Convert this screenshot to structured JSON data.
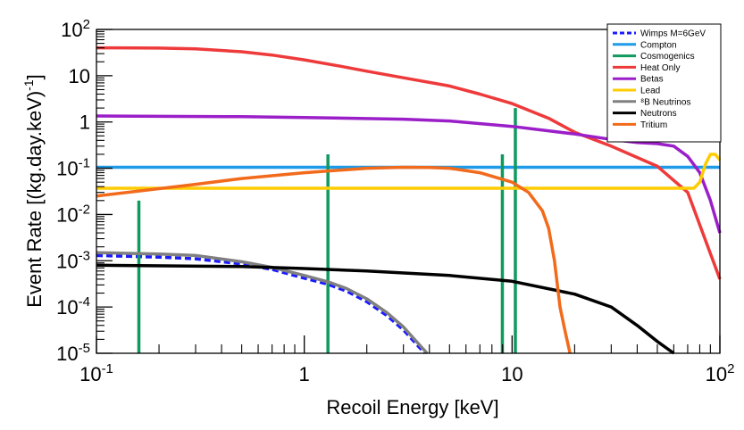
{
  "chart_data": {
    "type": "line",
    "title": "",
    "xlabel": "Recoil Energy [keV]",
    "ylabel": "Event Rate [(kg.day.keV)",
    "ylabel_sup": "-1",
    "ylabel_close": "]",
    "xscale": "log",
    "yscale": "log",
    "xlim": [
      0.1,
      100
    ],
    "ylim": [
      1e-05,
      100
    ],
    "grid": false,
    "legend_position": "top-right",
    "x_ticks": [
      {
        "value": 0.1,
        "base": "10",
        "exp": "-1"
      },
      {
        "value": 1,
        "base": "1",
        "exp": ""
      },
      {
        "value": 10,
        "base": "10",
        "exp": ""
      },
      {
        "value": 100,
        "base": "10",
        "exp": "2"
      }
    ],
    "y_ticks": [
      {
        "value": 100,
        "base": "10",
        "exp": "2"
      },
      {
        "value": 10,
        "base": "10",
        "exp": ""
      },
      {
        "value": 1,
        "base": "1",
        "exp": ""
      },
      {
        "value": 0.1,
        "base": "10",
        "exp": "-1"
      },
      {
        "value": 0.01,
        "base": "10",
        "exp": "-2"
      },
      {
        "value": 0.001,
        "base": "10",
        "exp": "-3"
      },
      {
        "value": 0.0001,
        "base": "10",
        "exp": "-4"
      },
      {
        "value": 1e-05,
        "base": "10",
        "exp": "-5"
      }
    ],
    "series": [
      {
        "name": "Wimps M=6GeV",
        "color": "#1a1aff",
        "dashed": true,
        "width": 3.5,
        "points": [
          [
            0.1,
            0.0013
          ],
          [
            0.2,
            0.0012
          ],
          [
            0.3,
            0.0011
          ],
          [
            0.5,
            0.00085
          ],
          [
            0.7,
            0.00065
          ],
          [
            1.0,
            0.00042
          ],
          [
            1.3,
            0.00031
          ],
          [
            1.6,
            0.00022
          ],
          [
            2.0,
            0.00013
          ],
          [
            2.5,
            6.5e-05
          ],
          [
            3.0,
            3.2e-05
          ],
          [
            3.5,
            1.5e-05
          ],
          [
            3.8,
            1e-05
          ]
        ]
      },
      {
        "name": "Compton",
        "color": "#1e9be8",
        "dashed": false,
        "width": 3.5,
        "points": [
          [
            0.1,
            0.105
          ],
          [
            100,
            0.105
          ]
        ]
      },
      {
        "name": "Cosmogenics",
        "color": "#0f9a5e",
        "dashed": false,
        "width": 3.5,
        "lines": [
          {
            "x": 0.16,
            "top": 0.02
          },
          {
            "x": 1.3,
            "top": 0.2
          },
          {
            "x": 8.98,
            "top": 0.2
          },
          {
            "x": 10.37,
            "top": 2.0
          }
        ]
      },
      {
        "name": "Heat Only",
        "color": "#ee3a3a",
        "dashed": false,
        "width": 3.5,
        "points": [
          [
            0.1,
            40
          ],
          [
            0.2,
            39.5
          ],
          [
            0.3,
            38
          ],
          [
            0.5,
            33
          ],
          [
            0.7,
            28
          ],
          [
            1.0,
            22
          ],
          [
            1.5,
            16
          ],
          [
            2.0,
            12.5
          ],
          [
            3.0,
            9
          ],
          [
            5.0,
            6
          ],
          [
            7.0,
            4
          ],
          [
            10.0,
            2.5
          ],
          [
            15.0,
            1.2
          ],
          [
            20.0,
            0.6
          ],
          [
            30.0,
            0.3
          ],
          [
            50.0,
            0.11
          ],
          [
            70.0,
            0.03
          ],
          [
            100.0,
            0.0004
          ]
        ]
      },
      {
        "name": "Betas",
        "color": "#9b1fc8",
        "dashed": false,
        "width": 3.5,
        "points": [
          [
            0.1,
            1.35
          ],
          [
            0.5,
            1.3
          ],
          [
            1.0,
            1.25
          ],
          [
            3.0,
            1.15
          ],
          [
            5.0,
            1.05
          ],
          [
            10.0,
            0.8
          ],
          [
            20.0,
            0.55
          ],
          [
            30.0,
            0.42
          ],
          [
            40.0,
            0.36
          ],
          [
            50.0,
            0.34
          ],
          [
            60.0,
            0.3
          ],
          [
            70.0,
            0.18
          ],
          [
            80.0,
            0.08
          ],
          [
            90.0,
            0.02
          ],
          [
            100.0,
            0.004
          ]
        ]
      },
      {
        "name": "Lead",
        "color": "#ffcc00",
        "dashed": false,
        "width": 3.5,
        "points": [
          [
            0.1,
            0.037
          ],
          [
            75.0,
            0.037
          ],
          [
            80.0,
            0.05
          ],
          [
            85.0,
            0.12
          ],
          [
            90.0,
            0.2
          ],
          [
            95.0,
            0.2
          ],
          [
            100.0,
            0.15
          ]
        ]
      },
      {
        "name": "⁸B Neutrinos",
        "color": "#808080",
        "dashed": false,
        "width": 3.5,
        "points": [
          [
            0.1,
            0.0015
          ],
          [
            0.2,
            0.0014
          ],
          [
            0.3,
            0.0013
          ],
          [
            0.5,
            0.00095
          ],
          [
            0.7,
            0.00072
          ],
          [
            1.0,
            0.00048
          ],
          [
            1.3,
            0.00035
          ],
          [
            1.6,
            0.00025
          ],
          [
            2.0,
            0.00015
          ],
          [
            2.5,
            7.5e-05
          ],
          [
            3.0,
            3.7e-05
          ],
          [
            3.5,
            1.7e-05
          ],
          [
            3.9,
            1e-05
          ]
        ]
      },
      {
        "name": "Neutrons",
        "color": "#000000",
        "dashed": false,
        "width": 3.5,
        "points": [
          [
            0.1,
            0.0008
          ],
          [
            0.5,
            0.00075
          ],
          [
            1.0,
            0.00068
          ],
          [
            2.0,
            0.0006
          ],
          [
            5.0,
            0.00048
          ],
          [
            10.0,
            0.00036
          ],
          [
            20.0,
            0.00019
          ],
          [
            30.0,
            0.0001
          ],
          [
            40.0,
            4e-05
          ],
          [
            50.0,
            1.8e-05
          ],
          [
            60.0,
            1e-05
          ]
        ]
      },
      {
        "name": "Tritium",
        "color": "#f26a1b",
        "dashed": false,
        "width": 3.5,
        "points": [
          [
            0.1,
            0.025
          ],
          [
            0.3,
            0.045
          ],
          [
            0.5,
            0.06
          ],
          [
            1.0,
            0.08
          ],
          [
            2.0,
            0.1
          ],
          [
            3.0,
            0.105
          ],
          [
            4.0,
            0.104
          ],
          [
            5.0,
            0.1
          ],
          [
            7.0,
            0.08
          ],
          [
            10.0,
            0.05
          ],
          [
            12.0,
            0.03
          ],
          [
            14.0,
            0.012
          ],
          [
            15.0,
            0.005
          ],
          [
            16.0,
            0.001
          ],
          [
            17.0,
            0.0001
          ],
          [
            18.0,
            3e-05
          ],
          [
            19.0,
            1e-05
          ]
        ]
      }
    ]
  }
}
